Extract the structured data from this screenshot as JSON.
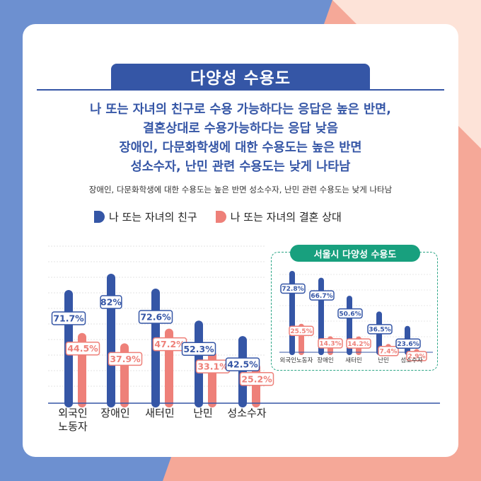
{
  "title": "다양성 수용도",
  "headline": [
    "나 또는 자녀의 친구로 수용 가능하다는 응답은 높은 반면,",
    "결혼상대로 수용가능하다는 응답 낮음",
    "장애인, 다문화학생에 대한 수용도는 높은 반면",
    "성소수자, 난민 관련 수용도는 낮게 나타남"
  ],
  "subline": "장애인, 다문화학생에 대한 수용도는 높은 반면 성소수자, 난민 관련 수용도는 낮게 나타남",
  "colors": {
    "blue": "#3556a6",
    "pink": "#ee8079",
    "green": "#18a07e"
  },
  "chart_data": [
    {
      "type": "bar",
      "categories": [
        "외국인\n노동자",
        "장애인",
        "새터민",
        "난민",
        "성소수자"
      ],
      "series": [
        {
          "name": "나 또는 자녀의 친구",
          "values": [
            71.7,
            82,
            72.6,
            52.3,
            42.5
          ],
          "labels": [
            "71.7%",
            "82%",
            "72.6%",
            "52.3%",
            "42.5%"
          ]
        },
        {
          "name": "나 또는 자녀의 결혼 상대",
          "values": [
            44.5,
            37.9,
            47.2,
            33.1,
            25.2
          ],
          "labels": [
            "44.5%",
            "37.9%",
            "47.2%",
            "33.1%",
            "25.2%"
          ]
        }
      ],
      "ylim": [
        0,
        100
      ],
      "grid": true,
      "legend": "top"
    },
    {
      "type": "bar",
      "title": "서울시 다양성 수용도",
      "categories": [
        "외국인노동자",
        "장애인",
        "새터민",
        "난민",
        "성소수자"
      ],
      "series": [
        {
          "name": "나 또는 자녀의 친구",
          "values": [
            72.8,
            66.7,
            50.6,
            36.5,
            23.6
          ],
          "labels": [
            "72.8%",
            "66.7%",
            "50.6%",
            "36.5%",
            "23.6%"
          ]
        },
        {
          "name": "나 또는 자녀의 결혼 상대",
          "values": [
            25.5,
            14.3,
            14.2,
            7.4,
            2.9
          ],
          "labels": [
            "25.5%",
            "14.3%",
            "14.2%",
            "7.4%",
            "2.9%"
          ]
        }
      ],
      "ylim": [
        0,
        100
      ]
    }
  ]
}
